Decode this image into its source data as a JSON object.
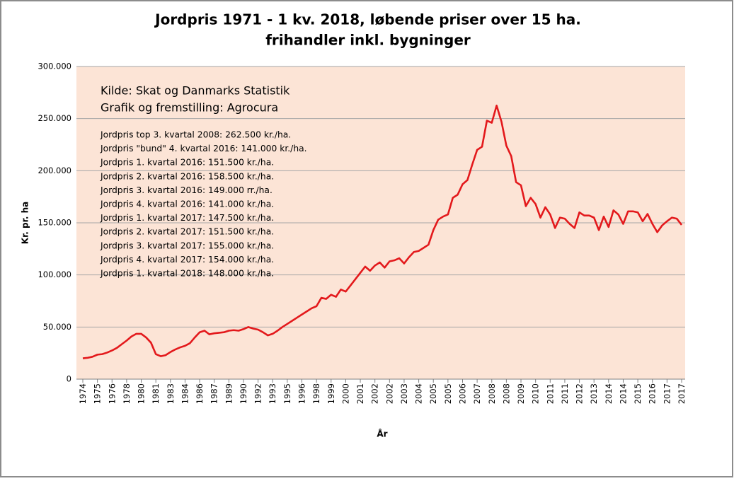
{
  "chart_data": {
    "type": "line",
    "title": "Jordpris 1971 - 1 kv. 2018, løbende priser over 15 ha.",
    "subtitle": "frihandler inkl. bygninger",
    "y_label": "Kr. pr. ha",
    "x_label": "År",
    "sources": [
      "Kilde: Skat og Danmarks Statistik",
      "Grafik og fremstilling: Agrocura"
    ],
    "annotations": [
      "Jordpris top 3. kvartal 2008: 262.500 kr./ha.",
      "Jordpris \"bund\" 4. kvartal 2016: 141.000 kr./ha.",
      "Jordpris 1. kvartal 2016: 151.500 kr./ha.",
      "Jordpris 2. kvartal 2016: 158.500 kr./ha.",
      "Jordpris 3. kvartal 2016: 149.000 rr./ha.",
      "Jordpris 4. kvartal 2016: 141.000 kr./ha.",
      "Jordpris 1. kvartal 2017: 147.500 kr./ha.",
      "Jordpris 2. kvartal 2017: 151.500 kr./ha.",
      "Jordpris 3. kvartal 2017: 155.000 kr./ha.",
      "Jordpris 4. kvartal 2017: 154.000 kr./ha.",
      "Jordpris 1. kvartal 2018: 148.000 kr./ha."
    ],
    "categories": [
      "1974",
      null,
      null,
      "1975",
      null,
      null,
      "1976",
      null,
      null,
      "1978",
      null,
      null,
      "1980",
      null,
      null,
      "1981",
      null,
      null,
      "1983",
      null,
      null,
      "1984",
      null,
      null,
      "1986",
      null,
      null,
      "1987",
      null,
      null,
      "1989",
      null,
      null,
      "1990",
      null,
      null,
      "1992",
      null,
      null,
      "1993",
      null,
      null,
      "1995",
      null,
      null,
      "1996",
      null,
      null,
      "1998",
      null,
      null,
      "1999",
      null,
      null,
      "2000",
      null,
      null,
      "2001",
      null,
      null,
      "2002",
      null,
      null,
      "2002",
      null,
      null,
      "2003",
      null,
      null,
      "2004",
      null,
      null,
      "2005",
      null,
      null,
      "2005",
      null,
      null,
      "2006",
      null,
      null,
      "2007",
      null,
      null,
      "2008",
      null,
      null,
      "2008",
      null,
      null,
      "2009",
      null,
      null,
      "2010",
      null,
      null,
      "2011",
      null,
      null,
      "2011",
      null,
      null,
      "2012",
      null,
      null,
      "2013",
      null,
      null,
      "2014",
      null,
      null,
      "2014",
      null,
      null,
      "2015",
      null,
      null,
      "2016",
      null,
      null,
      "2017",
      null,
      null,
      "2017"
    ],
    "values": [
      20000,
      20500,
      21500,
      23500,
      24000,
      25500,
      27500,
      30000,
      33500,
      37000,
      41000,
      43500,
      43500,
      40000,
      35000,
      24000,
      22000,
      23000,
      26000,
      28500,
      30500,
      32000,
      34500,
      40000,
      45000,
      46500,
      43000,
      44000,
      44500,
      45000,
      46500,
      47000,
      46500,
      48000,
      50000,
      48500,
      47500,
      45000,
      42000,
      43500,
      46500,
      50000,
      53000,
      56000,
      59000,
      62000,
      65000,
      68000,
      70000,
      78000,
      77000,
      81000,
      79000,
      86000,
      84000,
      90000,
      96000,
      102000,
      108000,
      104000,
      109000,
      112000,
      107000,
      113000,
      114000,
      116000,
      111000,
      117000,
      122000,
      123000,
      126000,
      129000,
      143000,
      153000,
      156000,
      158000,
      174000,
      177000,
      187000,
      191000,
      206000,
      220000,
      223000,
      248000,
      246000,
      262500,
      247000,
      224000,
      214000,
      189000,
      186000,
      166000,
      174000,
      168000,
      155000,
      165000,
      158000,
      145000,
      155000,
      154000,
      149000,
      145000,
      160000,
      157000,
      157000,
      155000,
      143000,
      156000,
      146000,
      162000,
      158000,
      149000,
      161000,
      161000,
      160000,
      151500,
      158500,
      149000,
      141000,
      147500,
      151500,
      155000,
      154000,
      148000
    ],
    "color": "#e3191c",
    "plot_background": "#fce4d6",
    "ylim": [
      0,
      300000
    ],
    "yticks": [
      0,
      {
        "value": 50000,
        "label": "50.000"
      },
      {
        "value": 100000,
        "label": "100.000"
      },
      {
        "value": 150000,
        "label": "150.000"
      },
      {
        "value": 200000,
        "label": "200.000"
      },
      {
        "value": 250000,
        "label": "250.000"
      },
      {
        "value": 300000,
        "label": "300.000"
      }
    ],
    "grid": true
  }
}
